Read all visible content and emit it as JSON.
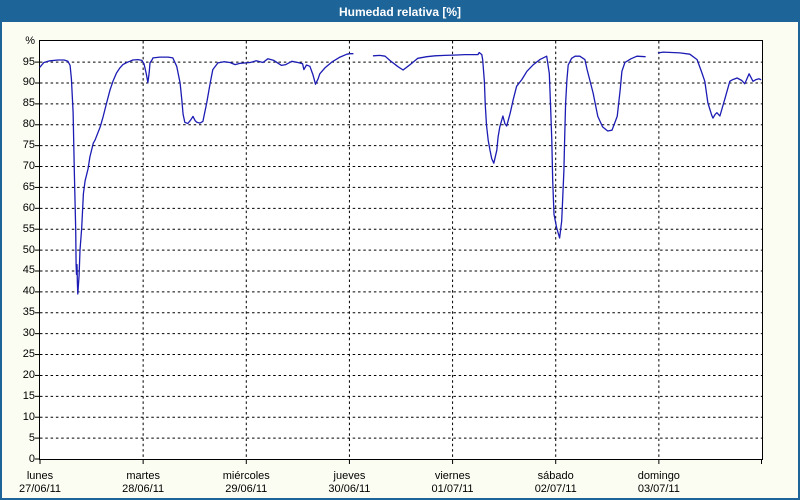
{
  "window": {
    "title": "Humedad relativa [%]"
  },
  "colors": {
    "window_border": "#1d6498",
    "titlebar_bg": "#1d6498",
    "titlebar_text": "#ffffff",
    "panel_bg": "#fcfdf2",
    "plot_bg": "#ffffff",
    "grid": "#000000",
    "axis": "#000000",
    "line": "#1c1cb4",
    "label_text": "#000000"
  },
  "chart_data": {
    "type": "line",
    "title": "Humedad relativa [%]",
    "ylabel": "%",
    "xlabel": "",
    "ylim": [
      0,
      100
    ],
    "y_tick_labels": [
      0,
      5,
      10,
      15,
      20,
      25,
      30,
      35,
      40,
      45,
      50,
      55,
      60,
      65,
      70,
      75,
      80,
      85,
      90,
      95
    ],
    "grid": true,
    "grid_style": "dashed",
    "legend": "none",
    "x_total_hours": 168,
    "x_axis_days": [
      {
        "label": "lunes",
        "date": "27/06/11"
      },
      {
        "label": "martes",
        "date": "28/06/11"
      },
      {
        "label": "miércoles",
        "date": "29/06/11"
      },
      {
        "label": "jueves",
        "date": "30/06/11"
      },
      {
        "label": "viernes",
        "date": "01/07/11"
      },
      {
        "label": "sábado",
        "date": "02/07/11"
      },
      {
        "label": "domingo",
        "date": "03/07/11"
      }
    ],
    "series": [
      {
        "name": "Humedad relativa [%]",
        "unit": "%",
        "color": "#1c1cb4",
        "x_unit": "hours from Monday 00:00",
        "segments": [
          [
            [
              0,
              93.8
            ],
            [
              0.9,
              94.9
            ],
            [
              2.3,
              95.3
            ],
            [
              4.2,
              95.5
            ],
            [
              5.6,
              95.5
            ],
            [
              6.5,
              95.2
            ],
            [
              7.0,
              94.2
            ],
            [
              7.3,
              91.0
            ],
            [
              7.7,
              83.0
            ],
            [
              8.0,
              68.0
            ],
            [
              8.3,
              55.0
            ],
            [
              8.4,
              46.5
            ],
            [
              8.5,
              44.2
            ],
            [
              8.6,
              46.5
            ],
            [
              8.7,
              42.0
            ],
            [
              8.8,
              39.5
            ],
            [
              9.1,
              44.0
            ],
            [
              9.3,
              50.0
            ],
            [
              9.7,
              55.3
            ],
            [
              10.1,
              63.5
            ],
            [
              10.5,
              66.6
            ],
            [
              11.2,
              69.5
            ],
            [
              11.6,
              72.3
            ],
            [
              12.4,
              75.6
            ],
            [
              12.8,
              76.3
            ],
            [
              14.0,
              79.5
            ],
            [
              14.7,
              82.0
            ],
            [
              15.5,
              85.2
            ],
            [
              16.3,
              88.4
            ],
            [
              17.0,
              90.5
            ],
            [
              17.8,
              92.4
            ],
            [
              18.6,
              93.6
            ],
            [
              19.3,
              94.4
            ],
            [
              20.2,
              94.9
            ],
            [
              20.9,
              95.2
            ],
            [
              21.6,
              95.5
            ],
            [
              22.8,
              95.6
            ],
            [
              23.7,
              95.4
            ],
            [
              24.2,
              94.6
            ],
            [
              24.7,
              92.3
            ],
            [
              25.1,
              90.1
            ],
            [
              25.4,
              92.5
            ],
            [
              25.6,
              94.8
            ],
            [
              26.1,
              95.6
            ],
            [
              26.3,
              96.0
            ],
            [
              27.9,
              96.2
            ],
            [
              29.8,
              96.2
            ],
            [
              30.9,
              96.0
            ],
            [
              31.8,
              94.0
            ],
            [
              32.6,
              90.0
            ],
            [
              33.0,
              86.0
            ],
            [
              33.3,
              82.5
            ],
            [
              33.7,
              80.6
            ],
            [
              34.4,
              80.3
            ],
            [
              35.1,
              81.2
            ],
            [
              35.6,
              82.0
            ],
            [
              36.1,
              81.0
            ],
            [
              36.5,
              80.6
            ],
            [
              37.2,
              80.4
            ],
            [
              37.9,
              80.8
            ],
            [
              38.8,
              85.2
            ],
            [
              39.6,
              90.0
            ],
            [
              40.2,
              93.2
            ],
            [
              41.4,
              94.8
            ],
            [
              42.8,
              95.1
            ],
            [
              44.2,
              94.9
            ],
            [
              45.4,
              94.4
            ],
            [
              46.5,
              94.7
            ],
            [
              47.9,
              94.8
            ],
            [
              48.9,
              94.9
            ],
            [
              50.3,
              95.3
            ],
            [
              51.9,
              94.9
            ],
            [
              53.0,
              95.8
            ],
            [
              54.4,
              95.4
            ],
            [
              56.2,
              94.2
            ],
            [
              57.2,
              94.4
            ],
            [
              58.6,
              95.2
            ],
            [
              60.0,
              94.9
            ],
            [
              61.1,
              94.6
            ],
            [
              61.4,
              93.2
            ],
            [
              62.0,
              94.3
            ],
            [
              62.8,
              94.0
            ],
            [
              63.5,
              92.0
            ],
            [
              64.1,
              89.7
            ],
            [
              64.7,
              91.0
            ],
            [
              65.1,
              92.2
            ],
            [
              66.3,
              93.6
            ],
            [
              67.9,
              95.0
            ],
            [
              69.8,
              96.2
            ],
            [
              71.4,
              96.9
            ],
            [
              72.1,
              97.0
            ],
            [
              72.8,
              97.0
            ]
          ],
          [
            [
              77.6,
              96.5
            ],
            [
              79.1,
              96.6
            ],
            [
              80.3,
              96.4
            ],
            [
              81.4,
              95.4
            ],
            [
              83.3,
              93.9
            ],
            [
              84.5,
              93.1
            ],
            [
              85.6,
              94.0
            ],
            [
              86.5,
              94.7
            ],
            [
              87.9,
              95.9
            ],
            [
              90.0,
              96.3
            ],
            [
              91.9,
              96.5
            ],
            [
              94.2,
              96.6
            ],
            [
              97.0,
              96.7
            ],
            [
              98.9,
              96.8
            ],
            [
              101.9,
              96.8
            ],
            [
              102.2,
              97.3
            ],
            [
              102.8,
              96.8
            ],
            [
              103.0,
              95.5
            ],
            [
              103.4,
              90.3
            ],
            [
              103.6,
              85.1
            ],
            [
              103.9,
              79.9
            ],
            [
              104.3,
              76.3
            ],
            [
              104.7,
              73.9
            ],
            [
              105.1,
              71.9
            ],
            [
              105.6,
              70.8
            ],
            [
              106.3,
              73.9
            ],
            [
              106.6,
              77.1
            ],
            [
              107.0,
              79.5
            ],
            [
              107.7,
              82.1
            ],
            [
              108.2,
              80.2
            ],
            [
              108.6,
              79.7
            ],
            [
              109.4,
              82.8
            ],
            [
              110.1,
              86.0
            ],
            [
              110.9,
              89.2
            ],
            [
              112.1,
              90.8
            ],
            [
              113.3,
              92.8
            ],
            [
              114.8,
              94.4
            ],
            [
              116.3,
              95.6
            ],
            [
              117.9,
              96.4
            ],
            [
              118.5,
              92.3
            ],
            [
              118.8,
              84.3
            ],
            [
              119.1,
              76.3
            ],
            [
              119.3,
              66.6
            ],
            [
              119.6,
              58.6
            ],
            [
              120.2,
              55.4
            ],
            [
              120.9,
              52.9
            ],
            [
              121.4,
              57.0
            ],
            [
              121.6,
              61.8
            ],
            [
              121.9,
              69.0
            ],
            [
              122.1,
              77.1
            ],
            [
              122.3,
              85.1
            ],
            [
              122.6,
              90.7
            ],
            [
              122.9,
              94.3
            ],
            [
              123.7,
              95.9
            ],
            [
              124.5,
              96.4
            ],
            [
              125.6,
              96.4
            ],
            [
              126.8,
              95.6
            ],
            [
              127.3,
              93.2
            ],
            [
              128.7,
              87.6
            ],
            [
              129.8,
              82.0
            ],
            [
              130.9,
              79.5
            ],
            [
              132.1,
              78.5
            ],
            [
              133.1,
              78.7
            ],
            [
              134.3,
              82.0
            ],
            [
              135.0,
              88.4
            ],
            [
              135.4,
              92.8
            ],
            [
              136.1,
              94.9
            ],
            [
              137.5,
              95.8
            ],
            [
              138.9,
              96.4
            ],
            [
              140.8,
              96.3
            ]
          ],
          [
            [
              143.9,
              97.2
            ],
            [
              145.0,
              97.4
            ],
            [
              147.0,
              97.3
            ],
            [
              148.9,
              97.2
            ],
            [
              151.2,
              96.9
            ],
            [
              152.9,
              95.6
            ],
            [
              154.0,
              92.5
            ],
            [
              154.7,
              90.4
            ],
            [
              155.4,
              85.2
            ],
            [
              156.3,
              82.3
            ],
            [
              156.6,
              81.6
            ],
            [
              157.1,
              82.5
            ],
            [
              157.5,
              82.9
            ],
            [
              158.2,
              82.1
            ],
            [
              159.4,
              86.3
            ],
            [
              160.5,
              90.4
            ],
            [
              161.2,
              90.8
            ],
            [
              162.2,
              91.2
            ],
            [
              163.3,
              90.6
            ],
            [
              164.0,
              89.8
            ],
            [
              165.0,
              92.2
            ],
            [
              165.9,
              90.4
            ],
            [
              166.6,
              90.8
            ],
            [
              167.3,
              91.0
            ],
            [
              167.7,
              90.8
            ]
          ]
        ]
      }
    ]
  }
}
